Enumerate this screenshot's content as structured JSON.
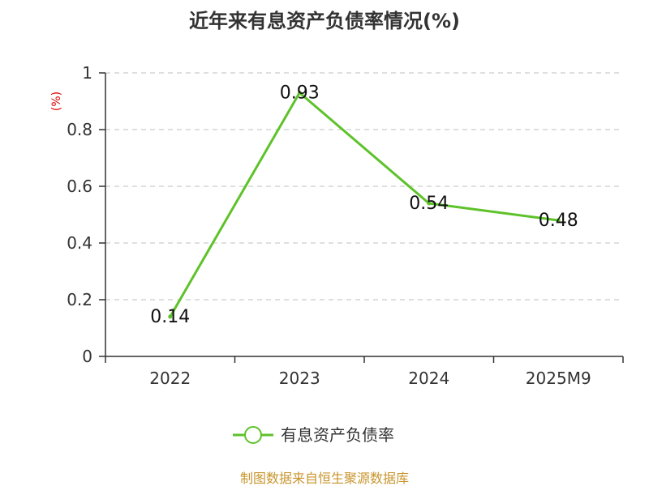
{
  "chart_data": {
    "type": "line",
    "title": "近年来有息资产负债率情况(%)",
    "ylabel": "(%)",
    "xlabel": "",
    "categories": [
      "2022",
      "2023",
      "2024",
      "2025M9"
    ],
    "series": [
      {
        "name": "有息资产负债率",
        "values": [
          0.14,
          0.93,
          0.54,
          0.48
        ],
        "color": "#5ec22a"
      }
    ],
    "data_labels": [
      "0.14",
      "0.93",
      "0.54",
      "0.48"
    ],
    "ylim": [
      0,
      1
    ],
    "yticks": [
      0,
      0.2,
      0.4,
      0.6,
      0.8,
      1
    ],
    "ytick_labels": [
      "0",
      "0.2",
      "0.4",
      "0.6",
      "0.8",
      "1"
    ],
    "grid": true,
    "legend_position": "bottom-center"
  },
  "source": "制图数据来自恒生聚源数据库",
  "colors": {
    "line": "#5ec22a",
    "grid": "#cccccc",
    "axis": "#333333",
    "unit": "#dd0000",
    "source": "#c8952e"
  }
}
